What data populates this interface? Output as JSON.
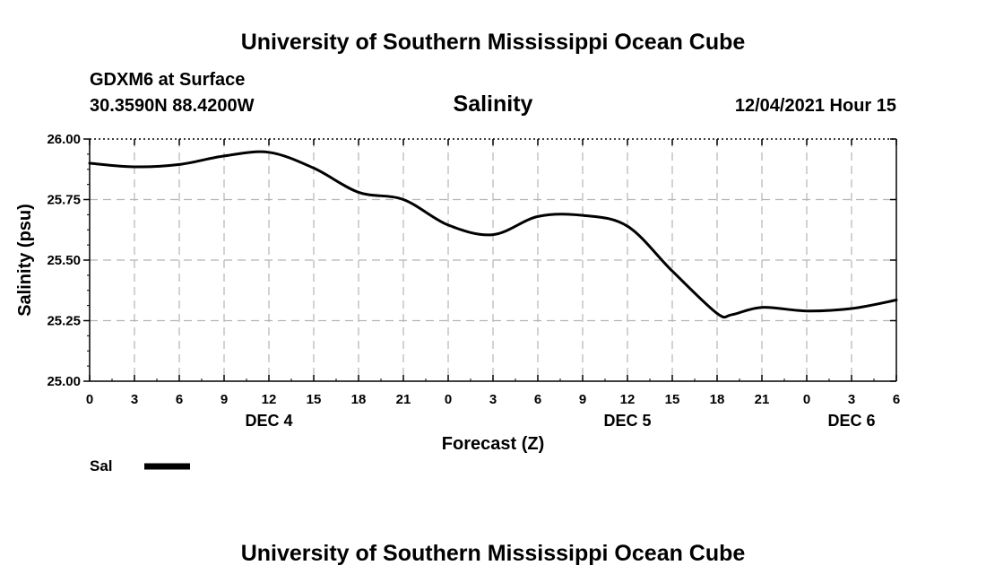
{
  "header": {
    "main_title": "University of Southern Mississippi Ocean Cube",
    "station": "GDXM6 at Surface",
    "coords": "30.3590N  88.4200W",
    "timestamp": "12/04/2021 Hour 15",
    "footer_title": "University of Southern Mississippi Ocean Cube"
  },
  "chart_data": {
    "type": "line",
    "title": "Salinity",
    "xlabel": "Forecast (Z)",
    "ylabel": "Salinity (psu)",
    "ylim": [
      25.0,
      26.0
    ],
    "xlim": [
      0,
      54
    ],
    "grid": true,
    "y_ticks": [
      "25.00",
      "25.25",
      "25.50",
      "25.75",
      "26.00"
    ],
    "x_tick_labels": [
      "0",
      "3",
      "6",
      "9",
      "12",
      "15",
      "18",
      "21",
      "0",
      "3",
      "6",
      "9",
      "12",
      "15",
      "18",
      "21",
      "0",
      "3",
      "6"
    ],
    "date_labels": [
      {
        "label": "DEC 4",
        "hour": 12
      },
      {
        "label": "DEC 5",
        "hour": 36
      },
      {
        "label": "DEC 6",
        "hour": 51
      }
    ],
    "legend": {
      "label": "Sal",
      "placement": "bottom-left"
    },
    "series": [
      {
        "name": "Sal",
        "color": "#000000",
        "x": [
          0,
          3,
          6,
          9,
          12,
          15,
          18,
          21,
          24,
          27,
          30,
          33,
          36,
          39,
          42,
          43,
          45,
          48,
          51,
          54
        ],
        "values": [
          25.9,
          25.885,
          25.895,
          25.93,
          25.945,
          25.88,
          25.78,
          25.75,
          25.645,
          25.605,
          25.68,
          25.685,
          25.64,
          25.455,
          25.28,
          25.275,
          25.305,
          25.29,
          25.3,
          25.335
        ]
      }
    ]
  }
}
